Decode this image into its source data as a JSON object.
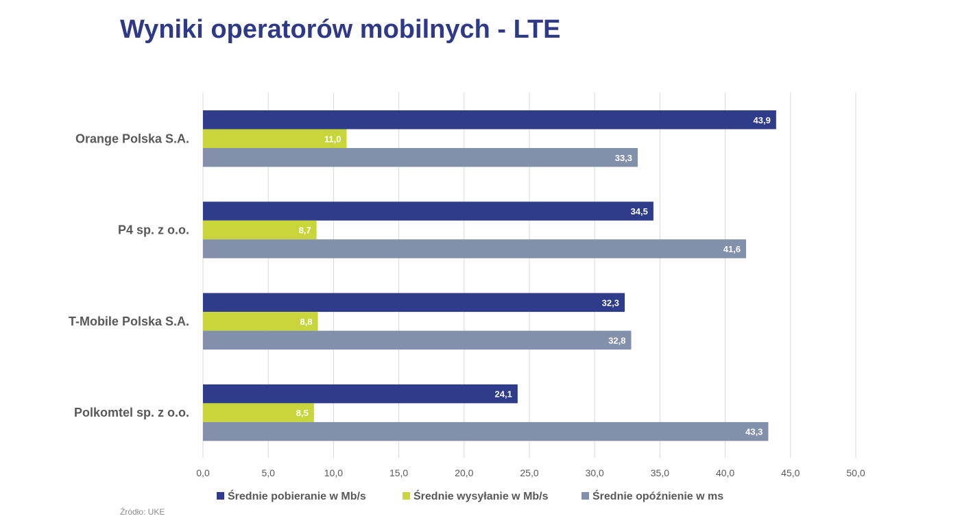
{
  "title": "Wyniki operatorów mobilnych - LTE",
  "source": "Źródło: UKE",
  "colors": {
    "download": "#2e3c8a",
    "upload": "#c8d63c",
    "latency": "#8390ab",
    "grid": "#d9d9d9",
    "text": "#595959"
  },
  "chart_data": {
    "type": "bar",
    "orientation": "horizontal",
    "categories": [
      "Orange Polska S.A.",
      "P4 sp. z o.o.",
      "T-Mobile Polska S.A.",
      "Polkomtel sp. z o.o."
    ],
    "series": [
      {
        "name": "Średnie pobieranie w Mb/s",
        "values": [
          43.9,
          34.5,
          32.3,
          24.1
        ],
        "labels": [
          "43,9",
          "34,5",
          "32,3",
          "24,1"
        ]
      },
      {
        "name": "Średnie wysyłanie w Mb/s",
        "values": [
          11.0,
          8.7,
          8.8,
          8.5
        ],
        "labels": [
          "11,0",
          "8,7",
          "8,8",
          "8,5"
        ]
      },
      {
        "name": "Średnie opóźnienie w ms",
        "values": [
          33.3,
          41.6,
          32.8,
          43.3
        ],
        "labels": [
          "33,3",
          "41,6",
          "32,8",
          "43,3"
        ]
      }
    ],
    "xlim": [
      0,
      50
    ],
    "xticks": [
      "0,0",
      "5,0",
      "10,0",
      "15,0",
      "20,0",
      "25,0",
      "30,0",
      "35,0",
      "40,0",
      "45,0",
      "50,0"
    ],
    "grid": true,
    "legend": "bottom"
  }
}
